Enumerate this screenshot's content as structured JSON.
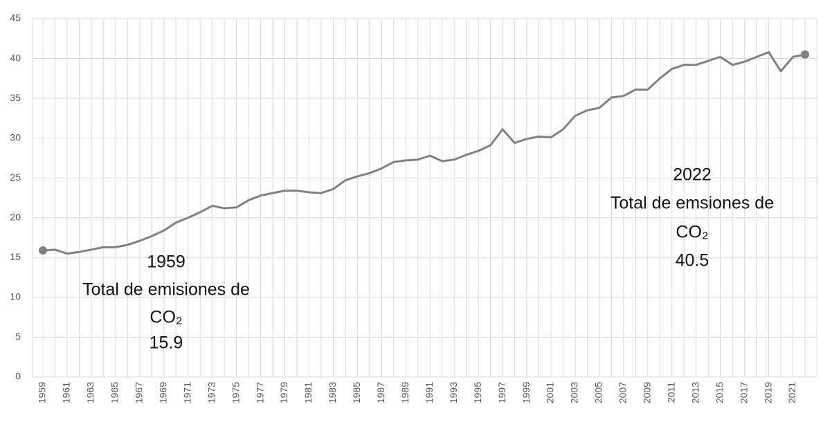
{
  "chart_data": {
    "type": "line",
    "x": [
      1959,
      1960,
      1961,
      1962,
      1963,
      1964,
      1965,
      1966,
      1967,
      1968,
      1969,
      1970,
      1971,
      1972,
      1973,
      1974,
      1975,
      1976,
      1977,
      1978,
      1979,
      1980,
      1981,
      1982,
      1983,
      1984,
      1985,
      1986,
      1987,
      1988,
      1989,
      1990,
      1991,
      1992,
      1993,
      1994,
      1995,
      1996,
      1997,
      1998,
      1999,
      2000,
      2001,
      2002,
      2003,
      2004,
      2005,
      2006,
      2007,
      2008,
      2009,
      2010,
      2011,
      2012,
      2013,
      2014,
      2015,
      2016,
      2017,
      2018,
      2019,
      2020,
      2021,
      2022
    ],
    "values": [
      15.9,
      16.0,
      15.5,
      15.7,
      16.0,
      16.3,
      16.3,
      16.6,
      17.1,
      17.7,
      18.4,
      19.4,
      20.0,
      20.7,
      21.5,
      21.2,
      21.3,
      22.2,
      22.8,
      23.1,
      23.4,
      23.4,
      23.2,
      23.1,
      23.6,
      24.7,
      25.2,
      25.6,
      26.2,
      27.0,
      27.2,
      27.3,
      27.8,
      27.1,
      27.3,
      27.9,
      28.4,
      29.1,
      31.1,
      29.4,
      29.9,
      30.2,
      30.1,
      31.1,
      32.8,
      33.5,
      33.8,
      35.1,
      35.3,
      36.1,
      36.1,
      37.5,
      38.7,
      39.2,
      39.2,
      39.7,
      40.2,
      39.2,
      39.6,
      40.2,
      40.8,
      38.4,
      40.2,
      40.5
    ],
    "color": "#808080",
    "xlim": [
      1959,
      2022
    ],
    "xticks": [
      1959,
      1961,
      1963,
      1965,
      1967,
      1969,
      1971,
      1973,
      1975,
      1977,
      1979,
      1981,
      1983,
      1985,
      1987,
      1989,
      1991,
      1993,
      1995,
      1997,
      1999,
      2001,
      2003,
      2005,
      2007,
      2009,
      2011,
      2013,
      2015,
      2017,
      2019,
      2021
    ],
    "ylim": [
      0,
      45
    ],
    "yticks": [
      0,
      5,
      10,
      15,
      20,
      25,
      30,
      35,
      40,
      45
    ],
    "grid": true,
    "annotations": [
      {
        "lines": [
          "Total de emisiones de",
          "CO₂"
        ]
      },
      {
        "lines": [
          "Total de emsiones de",
          "CO₂"
        ]
      }
    ]
  }
}
